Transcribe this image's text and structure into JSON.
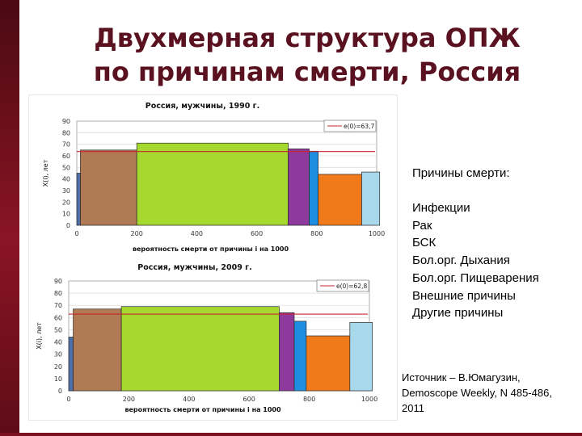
{
  "slide": {
    "title_line1": "Двухмерная структура ОПЖ",
    "title_line2": "по причинам смерти, Россия",
    "causes_header": "Причины смерти:",
    "causes": [
      "Инфекции",
      "Рак",
      "БСК",
      "Бол.орг. Дыхания",
      "Бол.орг. Пищеварения",
      "Внешние причины",
      "Другие причины"
    ],
    "source": "Источник – В.Юмагузин, Demoscope Weekly, N 485-486, 2011",
    "colors": {
      "accent": "#7a1020",
      "title": "#5a1220"
    }
  },
  "chart_data": [
    {
      "type": "bar",
      "title": "Россия, мужчины, 1990 г.",
      "xlabel": "вероятность смерти от причины i на 1000",
      "ylabel": "X(i), лет",
      "xlim": [
        0,
        1000
      ],
      "ylim": [
        0,
        90
      ],
      "x_ticks": [
        "0",
        "200",
        "400",
        "600",
        "800",
        "1000"
      ],
      "y_ticks": [
        "0",
        "10",
        "20",
        "30",
        "40",
        "50",
        "60",
        "70",
        "80",
        "90"
      ],
      "reference_line": {
        "value": 63.7,
        "legend": "e(0)=63,7"
      },
      "bars": [
        {
          "x0": 0,
          "x1": 12,
          "value": 45,
          "color": "#4f6fa8"
        },
        {
          "x0": 12,
          "x1": 200,
          "value": 65,
          "color": "#b07a55"
        },
        {
          "x0": 200,
          "x1": 705,
          "value": 71,
          "color": "#a6d930"
        },
        {
          "x0": 705,
          "x1": 775,
          "value": 66,
          "color": "#8e3a9c"
        },
        {
          "x0": 775,
          "x1": 805,
          "value": 64,
          "color": "#1e8fe0"
        },
        {
          "x0": 805,
          "x1": 950,
          "value": 44,
          "color": "#f07a1a"
        },
        {
          "x0": 950,
          "x1": 1010,
          "value": 46,
          "color": "#a8d8ec"
        }
      ]
    },
    {
      "type": "bar",
      "title": "Россия, мужчины, 2009 г.",
      "xlabel": "вероятность смерти от причины i на 1000",
      "ylabel": "X(i), лет",
      "xlim": [
        0,
        1000
      ],
      "ylim": [
        0,
        90
      ],
      "x_ticks": [
        "0",
        "200",
        "400",
        "600",
        "800",
        "1000"
      ],
      "y_ticks": [
        "0",
        "10",
        "20",
        "30",
        "40",
        "50",
        "60",
        "70",
        "80",
        "90"
      ],
      "reference_line": {
        "value": 62.8,
        "legend": "e(0)=62,8"
      },
      "bars": [
        {
          "x0": 0,
          "x1": 15,
          "value": 44,
          "color": "#4f6fa8"
        },
        {
          "x0": 15,
          "x1": 175,
          "value": 67,
          "color": "#b07a55"
        },
        {
          "x0": 175,
          "x1": 700,
          "value": 69,
          "color": "#a6d930"
        },
        {
          "x0": 700,
          "x1": 750,
          "value": 64,
          "color": "#8e3a9c"
        },
        {
          "x0": 750,
          "x1": 790,
          "value": 57,
          "color": "#1e8fe0"
        },
        {
          "x0": 790,
          "x1": 935,
          "value": 45,
          "color": "#f07a1a"
        },
        {
          "x0": 935,
          "x1": 1010,
          "value": 56,
          "color": "#a8d8ec"
        }
      ]
    }
  ]
}
